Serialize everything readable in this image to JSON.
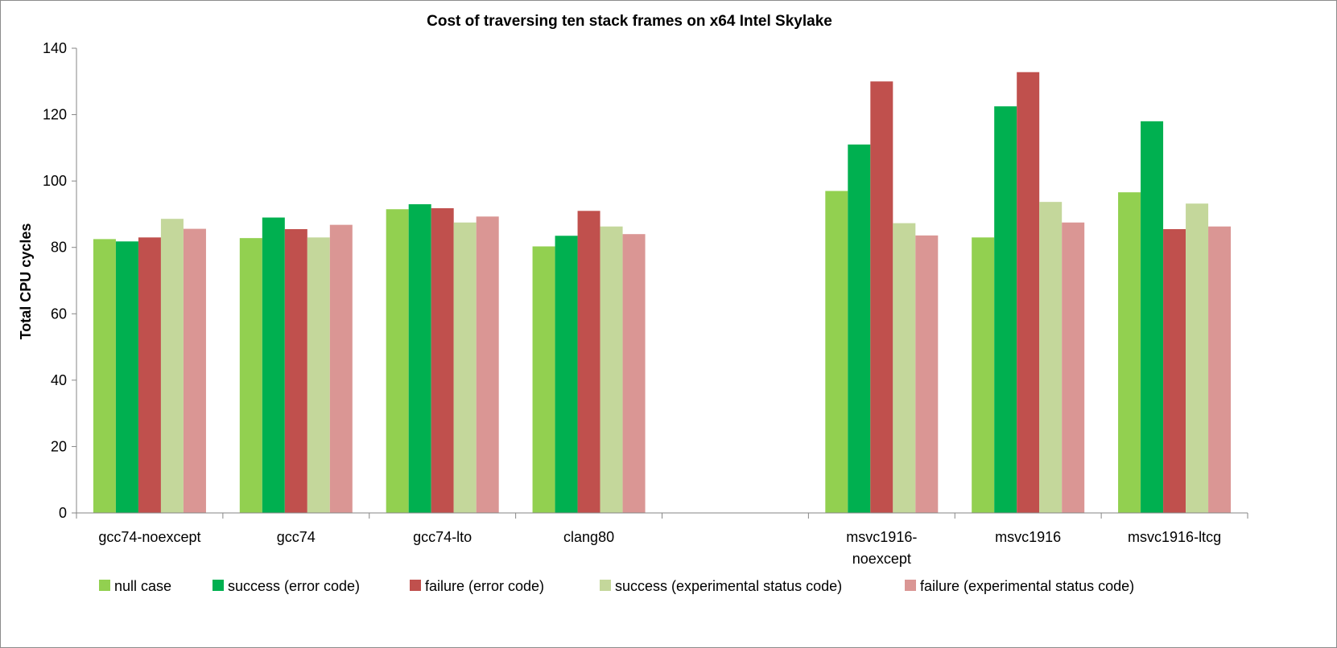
{
  "chart_data": {
    "type": "bar",
    "title": "Cost of traversing ten stack frames on x64 Intel Skylake",
    "xlabel": "",
    "ylabel": "Total CPU cycles",
    "ylim": [
      0,
      140
    ],
    "yticks": [
      0,
      20,
      40,
      60,
      80,
      100,
      120,
      140
    ],
    "grid": false,
    "legend_position": "bottom",
    "categories": [
      [
        "gcc74-noexcept"
      ],
      [
        "gcc74"
      ],
      [
        "gcc74-lto"
      ],
      [
        "clang80"
      ],
      [
        ""
      ],
      [
        "msvc1916-",
        "noexcept"
      ],
      [
        "msvc1916"
      ],
      [
        "msvc1916-ltcg"
      ]
    ],
    "series": [
      {
        "name": "null case",
        "color": "#92d050",
        "values": [
          82.5,
          82.8,
          91.5,
          80.3,
          null,
          97.0,
          83.0,
          96.6
        ]
      },
      {
        "name": "success (error code)",
        "color": "#00b050",
        "values": [
          81.8,
          89.0,
          93.0,
          83.5,
          null,
          111.0,
          122.5,
          118.0
        ]
      },
      {
        "name": "failure (error code)",
        "color": "#c0504d",
        "values": [
          83.0,
          85.5,
          91.8,
          91.0,
          null,
          130.0,
          132.8,
          85.5
        ]
      },
      {
        "name": "success (experimental status code)",
        "color": "#c4d79b",
        "values": [
          88.6,
          83.0,
          87.5,
          86.3,
          null,
          87.3,
          93.7,
          93.2
        ]
      },
      {
        "name": "failure (experimental status code)",
        "color": "#da9694",
        "values": [
          85.6,
          86.8,
          89.3,
          84.0,
          null,
          83.6,
          87.5,
          86.3
        ]
      }
    ]
  }
}
